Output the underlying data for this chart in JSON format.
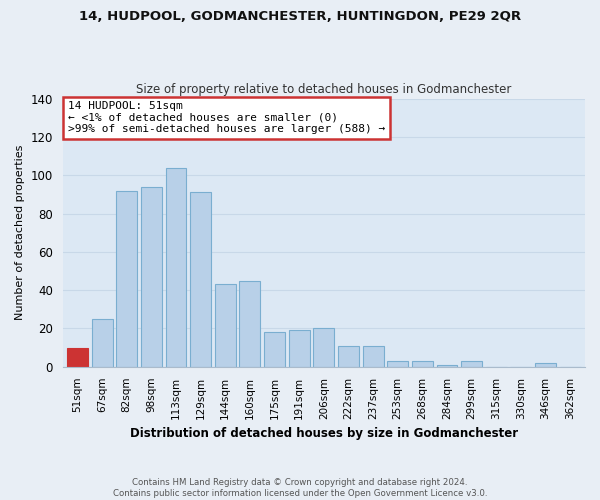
{
  "title": "14, HUDPOOL, GODMANCHESTER, HUNTINGDON, PE29 2QR",
  "subtitle": "Size of property relative to detached houses in Godmanchester",
  "xlabel": "Distribution of detached houses by size in Godmanchester",
  "ylabel": "Number of detached properties",
  "bar_labels": [
    "51sqm",
    "67sqm",
    "82sqm",
    "98sqm",
    "113sqm",
    "129sqm",
    "144sqm",
    "160sqm",
    "175sqm",
    "191sqm",
    "206sqm",
    "222sqm",
    "237sqm",
    "253sqm",
    "268sqm",
    "284sqm",
    "299sqm",
    "315sqm",
    "330sqm",
    "346sqm",
    "362sqm"
  ],
  "bar_values": [
    10,
    25,
    92,
    94,
    104,
    91,
    43,
    45,
    18,
    19,
    20,
    11,
    11,
    3,
    3,
    1,
    3,
    0,
    0,
    2,
    0
  ],
  "bar_color_normal": "#b8d0e8",
  "bar_color_highlight": "#cc3333",
  "bar_edge_color": "#7aaed0",
  "highlight_index": 0,
  "ylim": [
    0,
    140
  ],
  "yticks": [
    0,
    20,
    40,
    60,
    80,
    100,
    120,
    140
  ],
  "annotation_title": "14 HUDPOOL: 51sqm",
  "annotation_line1": "← <1% of detached houses are smaller (0)",
  "annotation_line2": ">99% of semi-detached houses are larger (588) →",
  "annotation_box_facecolor": "#ffffff",
  "annotation_box_edgecolor": "#cc3333",
  "footer_line1": "Contains HM Land Registry data © Crown copyright and database right 2024.",
  "footer_line2": "Contains public sector information licensed under the Open Government Licence v3.0.",
  "background_color": "#e8eef5",
  "plot_background_color": "#dce8f4",
  "grid_color": "#c8d8e8",
  "spine_color": "#aabbcc"
}
